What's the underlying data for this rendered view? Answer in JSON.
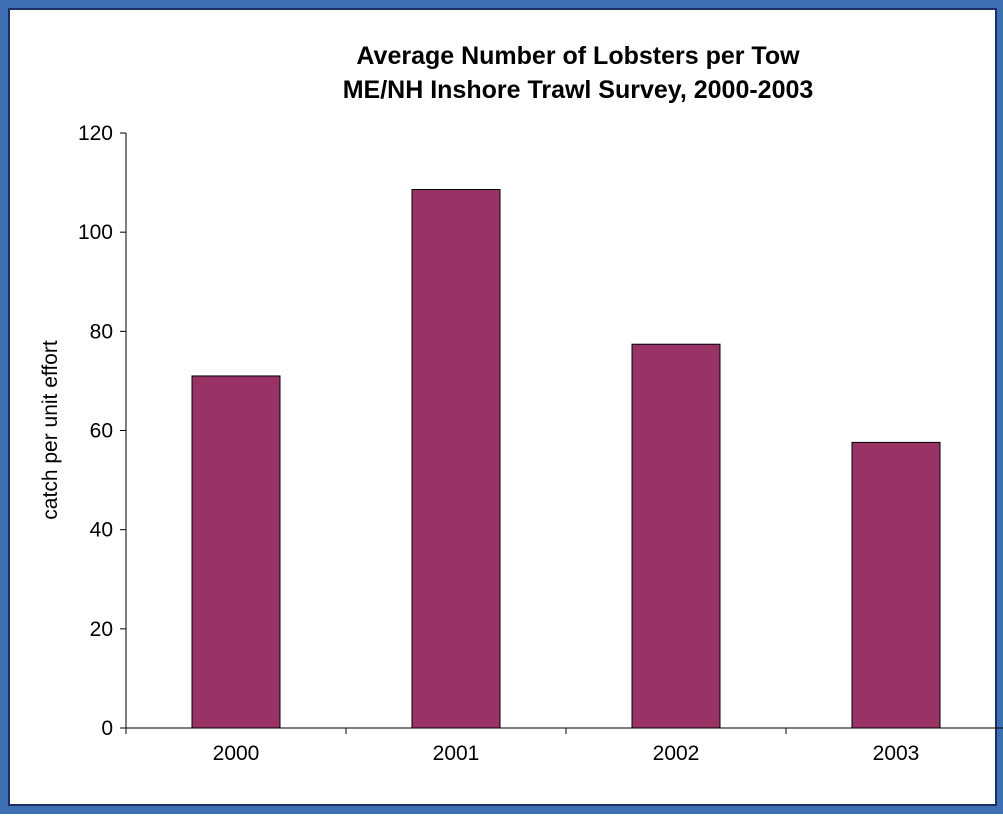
{
  "chart_data": {
    "type": "bar",
    "title": [
      "Average Number of Lobsters per Tow",
      "ME/NH Inshore Trawl Survey, 2000-2003"
    ],
    "xlabel": "",
    "ylabel": "catch per unit effort",
    "categories": [
      "2000",
      "2001",
      "2002",
      "2003"
    ],
    "values": [
      71,
      108.6,
      77.4,
      57.6
    ],
    "ylim": [
      0,
      120
    ],
    "yticks": [
      0,
      20,
      40,
      60,
      80,
      100,
      120
    ],
    "grid": false,
    "legend": "none",
    "colors": {
      "bar": "#993366",
      "frame": "#3d6fb2",
      "frame_dark": "#1c2f66"
    }
  }
}
